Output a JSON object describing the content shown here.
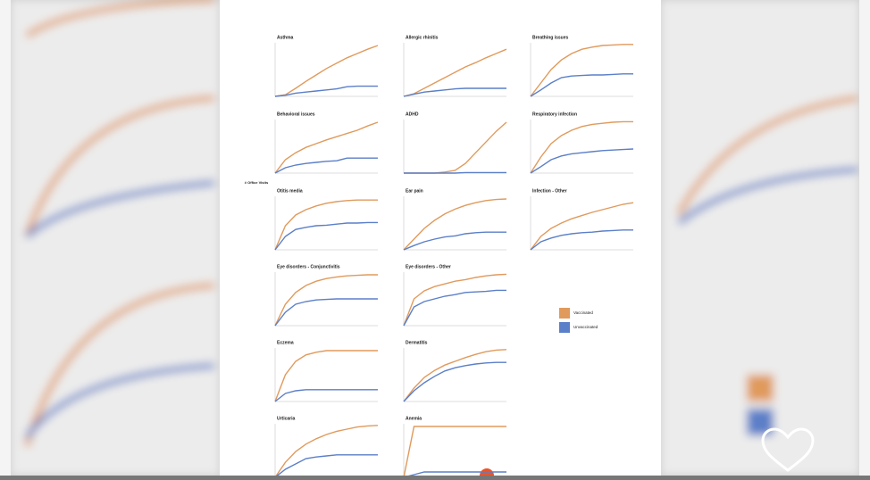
{
  "y_axis_label": "# Office Visits",
  "chart_data": [
    {
      "type": "line",
      "title": "Asthma",
      "x": [
        0,
        1,
        2,
        3,
        4,
        5,
        6,
        7,
        8,
        9,
        10
      ],
      "xlim": [
        0,
        10
      ],
      "ylim": [
        0,
        100
      ],
      "series": [
        {
          "name": "Vaccinated",
          "color": "#e09a5c",
          "values": [
            0,
            3,
            15,
            28,
            40,
            52,
            62,
            72,
            80,
            88,
            95
          ]
        },
        {
          "name": "Unvaccinated",
          "color": "#5b7fc8",
          "values": [
            0,
            2,
            6,
            8,
            10,
            12,
            14,
            18,
            19,
            19,
            19
          ]
        }
      ]
    },
    {
      "type": "line",
      "title": "Allergic rhinitis",
      "x": [
        0,
        1,
        2,
        3,
        4,
        5,
        6,
        7,
        8,
        9,
        10
      ],
      "xlim": [
        0,
        10
      ],
      "ylim": [
        0,
        100
      ],
      "series": [
        {
          "name": "Vaccinated",
          "color": "#e09a5c",
          "values": [
            0,
            5,
            15,
            25,
            35,
            45,
            55,
            63,
            72,
            80,
            88
          ]
        },
        {
          "name": "Unvaccinated",
          "color": "#5b7fc8",
          "values": [
            0,
            4,
            8,
            10,
            12,
            14,
            15,
            15,
            15,
            15,
            15
          ]
        }
      ]
    },
    {
      "type": "line",
      "title": "Breathing issues",
      "x": [
        0,
        1,
        2,
        3,
        4,
        5,
        6,
        7,
        8,
        9,
        10
      ],
      "xlim": [
        0,
        10
      ],
      "ylim": [
        0,
        100
      ],
      "series": [
        {
          "name": "Vaccinated",
          "color": "#e09a5c",
          "values": [
            0,
            25,
            50,
            68,
            80,
            88,
            92,
            95,
            96,
            97,
            97
          ]
        },
        {
          "name": "Unvaccinated",
          "color": "#5b7fc8",
          "values": [
            0,
            12,
            25,
            35,
            38,
            39,
            40,
            40,
            41,
            42,
            42
          ]
        }
      ]
    },
    {
      "type": "line",
      "title": "Behavioral issues",
      "x": [
        0,
        1,
        2,
        3,
        4,
        5,
        6,
        7,
        8,
        9,
        10
      ],
      "xlim": [
        0,
        10
      ],
      "ylim": [
        0,
        100
      ],
      "series": [
        {
          "name": "Vaccinated",
          "color": "#e09a5c",
          "values": [
            0,
            25,
            38,
            48,
            55,
            62,
            68,
            74,
            80,
            88,
            95
          ]
        },
        {
          "name": "Unvaccinated",
          "color": "#5b7fc8",
          "values": [
            0,
            10,
            15,
            18,
            20,
            22,
            23,
            28,
            28,
            28,
            28
          ]
        }
      ]
    },
    {
      "type": "line",
      "title": "ADHD",
      "x": [
        0,
        1,
        2,
        3,
        4,
        5,
        6,
        7,
        8,
        9,
        10
      ],
      "xlim": [
        0,
        10
      ],
      "ylim": [
        0,
        100
      ],
      "series": [
        {
          "name": "Vaccinated",
          "color": "#e09a5c",
          "values": [
            0,
            0,
            0,
            0,
            2,
            5,
            18,
            38,
            58,
            78,
            95
          ]
        },
        {
          "name": "Unvaccinated",
          "color": "#5b7fc8",
          "values": [
            0,
            0,
            0,
            0,
            0,
            0,
            1,
            1,
            1,
            1,
            1
          ]
        }
      ]
    },
    {
      "type": "line",
      "title": "Respiratory infection",
      "x": [
        0,
        1,
        2,
        3,
        4,
        5,
        6,
        7,
        8,
        9,
        10
      ],
      "xlim": [
        0,
        10
      ],
      "ylim": [
        0,
        100
      ],
      "series": [
        {
          "name": "Vaccinated",
          "color": "#e09a5c",
          "values": [
            0,
            30,
            55,
            70,
            80,
            87,
            91,
            93,
            95,
            96,
            96
          ]
        },
        {
          "name": "Unvaccinated",
          "color": "#5b7fc8",
          "values": [
            0,
            12,
            25,
            32,
            36,
            38,
            40,
            42,
            43,
            44,
            45
          ]
        }
      ]
    },
    {
      "type": "line",
      "title": "Otitis media",
      "x": [
        0,
        1,
        2,
        3,
        4,
        5,
        6,
        7,
        8,
        9,
        10
      ],
      "xlim": [
        0,
        10
      ],
      "ylim": [
        0,
        100
      ],
      "series": [
        {
          "name": "Vaccinated",
          "color": "#e09a5c",
          "values": [
            0,
            45,
            65,
            75,
            82,
            87,
            90,
            92,
            93,
            93,
            93
          ]
        },
        {
          "name": "Unvaccinated",
          "color": "#5b7fc8",
          "values": [
            0,
            25,
            38,
            42,
            45,
            46,
            48,
            50,
            50,
            51,
            51
          ]
        }
      ]
    },
    {
      "type": "line",
      "title": "Ear pain",
      "x": [
        0,
        1,
        2,
        3,
        4,
        5,
        6,
        7,
        8,
        9,
        10
      ],
      "xlim": [
        0,
        10
      ],
      "ylim": [
        0,
        100
      ],
      "series": [
        {
          "name": "Vaccinated",
          "color": "#e09a5c",
          "values": [
            0,
            20,
            40,
            55,
            67,
            76,
            83,
            88,
            92,
            94,
            95
          ]
        },
        {
          "name": "Unvaccinated",
          "color": "#5b7fc8",
          "values": [
            0,
            8,
            15,
            20,
            24,
            26,
            30,
            32,
            33,
            33,
            33
          ]
        }
      ]
    },
    {
      "type": "line",
      "title": "Infection - Other",
      "x": [
        0,
        1,
        2,
        3,
        4,
        5,
        6,
        7,
        8,
        9,
        10
      ],
      "xlim": [
        0,
        10
      ],
      "ylim": [
        0,
        100
      ],
      "series": [
        {
          "name": "Vaccinated",
          "color": "#e09a5c",
          "values": [
            0,
            25,
            40,
            50,
            58,
            64,
            70,
            75,
            80,
            85,
            88
          ]
        },
        {
          "name": "Unvaccinated",
          "color": "#5b7fc8",
          "values": [
            0,
            15,
            22,
            27,
            30,
            32,
            33,
            35,
            36,
            37,
            37
          ]
        }
      ]
    },
    {
      "type": "line",
      "title": "Eye disorders - Conjunctivitis",
      "x": [
        0,
        1,
        2,
        3,
        4,
        5,
        6,
        7,
        8,
        9,
        10
      ],
      "xlim": [
        0,
        10
      ],
      "ylim": [
        0,
        100
      ],
      "series": [
        {
          "name": "Vaccinated",
          "color": "#e09a5c",
          "values": [
            0,
            40,
            62,
            75,
            83,
            88,
            91,
            93,
            94,
            95,
            95
          ]
        },
        {
          "name": "Unvaccinated",
          "color": "#5b7fc8",
          "values": [
            0,
            25,
            40,
            45,
            48,
            49,
            50,
            50,
            50,
            50,
            50
          ]
        }
      ]
    },
    {
      "type": "line",
      "title": "Eye disorders - Other",
      "x": [
        0,
        1,
        2,
        3,
        4,
        5,
        6,
        7,
        8,
        9,
        10
      ],
      "xlim": [
        0,
        10
      ],
      "ylim": [
        0,
        100
      ],
      "series": [
        {
          "name": "Vaccinated",
          "color": "#e09a5c",
          "values": [
            0,
            50,
            65,
            73,
            78,
            83,
            86,
            90,
            93,
            95,
            96
          ]
        },
        {
          "name": "Unvaccinated",
          "color": "#5b7fc8",
          "values": [
            0,
            35,
            45,
            50,
            55,
            58,
            62,
            63,
            64,
            66,
            66
          ]
        }
      ]
    },
    {
      "type": "line",
      "title": "Eczema",
      "x": [
        0,
        1,
        2,
        3,
        4,
        5,
        6,
        7,
        8,
        9,
        10
      ],
      "xlim": [
        0,
        10
      ],
      "ylim": [
        0,
        100
      ],
      "series": [
        {
          "name": "Vaccinated",
          "color": "#e09a5c",
          "values": [
            0,
            50,
            75,
            87,
            92,
            95,
            95,
            95,
            95,
            95,
            95
          ]
        },
        {
          "name": "Unvaccinated",
          "color": "#5b7fc8",
          "values": [
            0,
            15,
            20,
            22,
            22,
            22,
            22,
            22,
            22,
            22,
            22
          ]
        }
      ]
    },
    {
      "type": "line",
      "title": "Dermatitis",
      "x": [
        0,
        1,
        2,
        3,
        4,
        5,
        6,
        7,
        8,
        9,
        10
      ],
      "xlim": [
        0,
        10
      ],
      "ylim": [
        0,
        100
      ],
      "series": [
        {
          "name": "Vaccinated",
          "color": "#e09a5c",
          "values": [
            0,
            25,
            45,
            58,
            68,
            75,
            82,
            88,
            93,
            96,
            97
          ]
        },
        {
          "name": "Unvaccinated",
          "color": "#5b7fc8",
          "values": [
            0,
            20,
            35,
            47,
            57,
            63,
            67,
            70,
            72,
            73,
            73
          ]
        }
      ]
    },
    {
      "type": "line",
      "title": "Urticaria",
      "x": [
        0,
        1,
        2,
        3,
        4,
        5,
        6,
        7,
        8,
        9,
        10
      ],
      "xlim": [
        0,
        10
      ],
      "ylim": [
        0,
        100
      ],
      "series": [
        {
          "name": "Vaccinated",
          "color": "#e09a5c",
          "values": [
            0,
            28,
            48,
            62,
            72,
            80,
            86,
            90,
            94,
            96,
            97
          ]
        },
        {
          "name": "Unvaccinated",
          "color": "#5b7fc8",
          "values": [
            0,
            15,
            25,
            35,
            38,
            40,
            42,
            42,
            42,
            42,
            42
          ]
        }
      ]
    },
    {
      "type": "line",
      "title": "Anemia",
      "x": [
        0,
        1,
        2,
        3,
        4,
        5,
        6,
        7,
        8,
        9,
        10
      ],
      "xlim": [
        0,
        10
      ],
      "ylim": [
        0,
        100
      ],
      "series": [
        {
          "name": "Vaccinated",
          "color": "#e09a5c",
          "values": [
            0,
            95,
            95,
            95,
            95,
            95,
            95,
            95,
            95,
            95,
            95
          ]
        },
        {
          "name": "Unvaccinated",
          "color": "#5b7fc8",
          "values": [
            0,
            5,
            10,
            10,
            10,
            10,
            10,
            10,
            10,
            10,
            10
          ]
        }
      ]
    }
  ]
}
